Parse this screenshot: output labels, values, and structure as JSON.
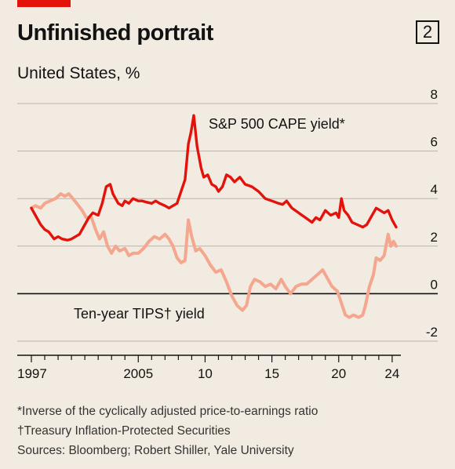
{
  "header": {
    "title": "Unfinished portrait",
    "chart_number": "2",
    "subtitle": "United States, %"
  },
  "footer": {
    "note_1": "*Inverse of the cyclically adjusted price-to-earnings ratio",
    "note_2": "†Treasury Inflation-Protected Securities",
    "sources": "Sources: Bloomberg; Robert Shiller, Yale University"
  },
  "colors": {
    "cape": "#e3120b",
    "tips": "#f4a78e",
    "axis": "#121212",
    "grid": "#b9b3ab",
    "background": "#f2ebe1"
  },
  "chart_data": {
    "type": "line",
    "title": "Unfinished portrait",
    "ylabel": "United States, %",
    "xlim": [
      1997,
      2024.3
    ],
    "ylim": [
      -2,
      8
    ],
    "y_ticks": [
      -2,
      0,
      2,
      4,
      6,
      8
    ],
    "x_tick_labels": [
      {
        "x": 1997,
        "label": "1997"
      },
      {
        "x": 2005,
        "label": "2005"
      },
      {
        "x": 2010,
        "label": "10"
      },
      {
        "x": 2015,
        "label": "15"
      },
      {
        "x": 2020,
        "label": "20"
      },
      {
        "x": 2024,
        "label": "24"
      }
    ],
    "grid": "horizontal",
    "series": [
      {
        "name": "S&P 500 CAPE yield*",
        "color": "#e3120b",
        "points": [
          [
            1997.0,
            3.6
          ],
          [
            1997.3,
            3.3
          ],
          [
            1997.7,
            2.9
          ],
          [
            1998.0,
            2.7
          ],
          [
            1998.3,
            2.6
          ],
          [
            1998.7,
            2.3
          ],
          [
            1999.0,
            2.4
          ],
          [
            1999.3,
            2.3
          ],
          [
            1999.7,
            2.25
          ],
          [
            2000.0,
            2.3
          ],
          [
            2000.3,
            2.4
          ],
          [
            2000.6,
            2.5
          ],
          [
            2001.0,
            2.9
          ],
          [
            2001.3,
            3.2
          ],
          [
            2001.6,
            3.4
          ],
          [
            2002.0,
            3.3
          ],
          [
            2002.3,
            3.8
          ],
          [
            2002.6,
            4.5
          ],
          [
            2002.9,
            4.6
          ],
          [
            2003.1,
            4.2
          ],
          [
            2003.5,
            3.8
          ],
          [
            2003.8,
            3.7
          ],
          [
            2004.0,
            3.9
          ],
          [
            2004.3,
            3.8
          ],
          [
            2004.6,
            4.0
          ],
          [
            2005.0,
            3.9
          ],
          [
            2005.3,
            3.9
          ],
          [
            2005.6,
            3.85
          ],
          [
            2006.0,
            3.8
          ],
          [
            2006.3,
            3.9
          ],
          [
            2006.6,
            3.8
          ],
          [
            2007.0,
            3.7
          ],
          [
            2007.3,
            3.6
          ],
          [
            2007.6,
            3.7
          ],
          [
            2007.9,
            3.8
          ],
          [
            2008.2,
            4.3
          ],
          [
            2008.5,
            4.8
          ],
          [
            2008.75,
            6.3
          ],
          [
            2008.95,
            6.8
          ],
          [
            2009.15,
            7.5
          ],
          [
            2009.4,
            6.2
          ],
          [
            2009.7,
            5.3
          ],
          [
            2009.9,
            4.9
          ],
          [
            2010.2,
            5.0
          ],
          [
            2010.5,
            4.6
          ],
          [
            2010.8,
            4.5
          ],
          [
            2011.0,
            4.3
          ],
          [
            2011.3,
            4.5
          ],
          [
            2011.6,
            5.0
          ],
          [
            2011.9,
            4.9
          ],
          [
            2012.2,
            4.7
          ],
          [
            2012.6,
            4.9
          ],
          [
            2013.0,
            4.6
          ],
          [
            2013.5,
            4.5
          ],
          [
            2014.0,
            4.3
          ],
          [
            2014.5,
            4.0
          ],
          [
            2015.0,
            3.9
          ],
          [
            2015.5,
            3.8
          ],
          [
            2015.8,
            3.75
          ],
          [
            2016.1,
            3.9
          ],
          [
            2016.5,
            3.6
          ],
          [
            2017.0,
            3.4
          ],
          [
            2017.5,
            3.2
          ],
          [
            2018.0,
            3.0
          ],
          [
            2018.3,
            3.2
          ],
          [
            2018.6,
            3.1
          ],
          [
            2019.0,
            3.5
          ],
          [
            2019.4,
            3.3
          ],
          [
            2019.8,
            3.4
          ],
          [
            2020.0,
            3.2
          ],
          [
            2020.2,
            4.0
          ],
          [
            2020.4,
            3.5
          ],
          [
            2020.7,
            3.3
          ],
          [
            2021.0,
            3.0
          ],
          [
            2021.4,
            2.9
          ],
          [
            2021.8,
            2.8
          ],
          [
            2022.1,
            2.9
          ],
          [
            2022.5,
            3.3
          ],
          [
            2022.8,
            3.6
          ],
          [
            2023.1,
            3.5
          ],
          [
            2023.4,
            3.4
          ],
          [
            2023.7,
            3.5
          ],
          [
            2024.0,
            3.1
          ],
          [
            2024.3,
            2.8
          ]
        ]
      },
      {
        "name": "Ten-year TIPS† yield",
        "color": "#f4a78e",
        "points": [
          [
            1997.0,
            3.6
          ],
          [
            1997.3,
            3.7
          ],
          [
            1997.7,
            3.6
          ],
          [
            1998.0,
            3.8
          ],
          [
            1998.4,
            3.9
          ],
          [
            1998.8,
            4.0
          ],
          [
            1999.2,
            4.2
          ],
          [
            1999.5,
            4.1
          ],
          [
            1999.8,
            4.2
          ],
          [
            2000.1,
            4.0
          ],
          [
            2000.4,
            3.8
          ],
          [
            2000.8,
            3.5
          ],
          [
            2001.1,
            3.2
          ],
          [
            2001.5,
            3.2
          ],
          [
            2001.8,
            2.7
          ],
          [
            2002.1,
            2.3
          ],
          [
            2002.4,
            2.6
          ],
          [
            2002.7,
            2.0
          ],
          [
            2003.0,
            1.7
          ],
          [
            2003.3,
            2.0
          ],
          [
            2003.6,
            1.8
          ],
          [
            2004.0,
            1.9
          ],
          [
            2004.3,
            1.6
          ],
          [
            2004.6,
            1.7
          ],
          [
            2005.0,
            1.7
          ],
          [
            2005.4,
            1.9
          ],
          [
            2005.8,
            2.2
          ],
          [
            2006.2,
            2.4
          ],
          [
            2006.6,
            2.3
          ],
          [
            2007.0,
            2.5
          ],
          [
            2007.3,
            2.3
          ],
          [
            2007.6,
            2.0
          ],
          [
            2007.9,
            1.5
          ],
          [
            2008.2,
            1.3
          ],
          [
            2008.5,
            1.4
          ],
          [
            2008.75,
            3.1
          ],
          [
            2009.0,
            2.4
          ],
          [
            2009.3,
            1.8
          ],
          [
            2009.6,
            1.9
          ],
          [
            2010.0,
            1.6
          ],
          [
            2010.4,
            1.2
          ],
          [
            2010.8,
            0.9
          ],
          [
            2011.2,
            1.0
          ],
          [
            2011.6,
            0.5
          ],
          [
            2012.0,
            -0.1
          ],
          [
            2012.4,
            -0.5
          ],
          [
            2012.8,
            -0.7
          ],
          [
            2013.1,
            -0.5
          ],
          [
            2013.4,
            0.3
          ],
          [
            2013.7,
            0.6
          ],
          [
            2014.1,
            0.5
          ],
          [
            2014.5,
            0.3
          ],
          [
            2014.9,
            0.4
          ],
          [
            2015.3,
            0.2
          ],
          [
            2015.7,
            0.6
          ],
          [
            2016.0,
            0.3
          ],
          [
            2016.4,
            0.0
          ],
          [
            2016.8,
            0.3
          ],
          [
            2017.2,
            0.4
          ],
          [
            2017.6,
            0.4
          ],
          [
            2018.0,
            0.6
          ],
          [
            2018.4,
            0.8
          ],
          [
            2018.8,
            1.0
          ],
          [
            2019.1,
            0.7
          ],
          [
            2019.5,
            0.3
          ],
          [
            2019.9,
            0.1
          ],
          [
            2020.2,
            -0.4
          ],
          [
            2020.5,
            -0.9
          ],
          [
            2020.8,
            -1.0
          ],
          [
            2021.1,
            -0.9
          ],
          [
            2021.5,
            -1.0
          ],
          [
            2021.8,
            -0.9
          ],
          [
            2022.0,
            -0.5
          ],
          [
            2022.3,
            0.3
          ],
          [
            2022.6,
            0.8
          ],
          [
            2022.8,
            1.5
          ],
          [
            2023.1,
            1.4
          ],
          [
            2023.4,
            1.6
          ],
          [
            2023.7,
            2.5
          ],
          [
            2023.9,
            2.0
          ],
          [
            2024.1,
            2.2
          ],
          [
            2024.3,
            2.0
          ]
        ]
      }
    ],
    "annotations": [
      {
        "text": "S&P 500 CAPE yield*",
        "series": 0
      },
      {
        "text": "Ten-year TIPS† yield",
        "series": 1
      }
    ]
  }
}
